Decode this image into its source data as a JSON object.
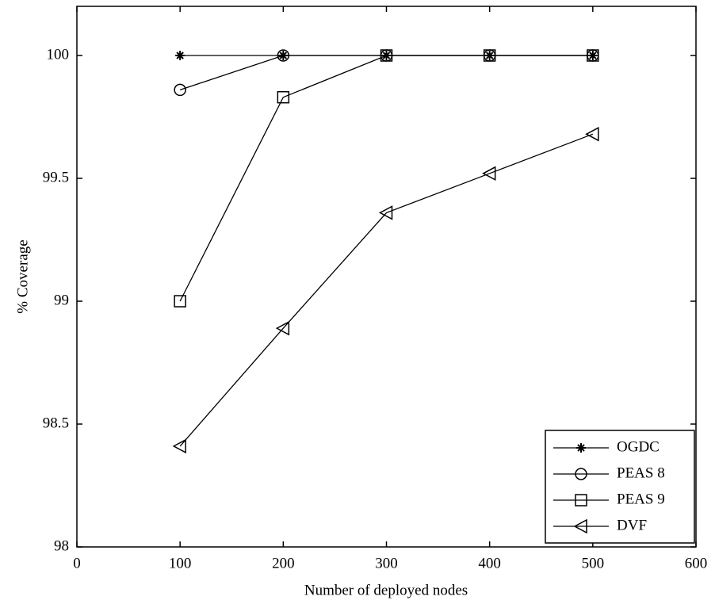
{
  "chart_data": {
    "type": "line",
    "x_label": "Number of deployed nodes",
    "y_label": "% Coverage",
    "x": [
      100,
      200,
      300,
      400,
      500
    ],
    "series": [
      {
        "name": "OGDC",
        "color": "#000000",
        "marker": "star",
        "values": [
          100,
          100,
          100,
          100,
          100
        ]
      },
      {
        "name": "PEAS 8",
        "color": "#000000",
        "marker": "circle",
        "values": [
          99.86,
          100,
          100,
          100,
          100
        ]
      },
      {
        "name": "PEAS 9",
        "color": "#000000",
        "marker": "square",
        "values": [
          99.0,
          99.83,
          100,
          100,
          100
        ]
      },
      {
        "name": "DVF",
        "color": "#000000",
        "marker": "triangle-left",
        "values": [
          98.41,
          98.89,
          99.36,
          99.52,
          99.68
        ]
      }
    ],
    "xlim": [
      0,
      600
    ],
    "xticks": [
      0,
      100,
      200,
      300,
      400,
      500,
      600
    ],
    "ylim": [
      98,
      100.2
    ],
    "yticks": [
      98,
      98.5,
      99,
      99.5,
      100
    ],
    "legend": "lower right",
    "grid": false
  }
}
